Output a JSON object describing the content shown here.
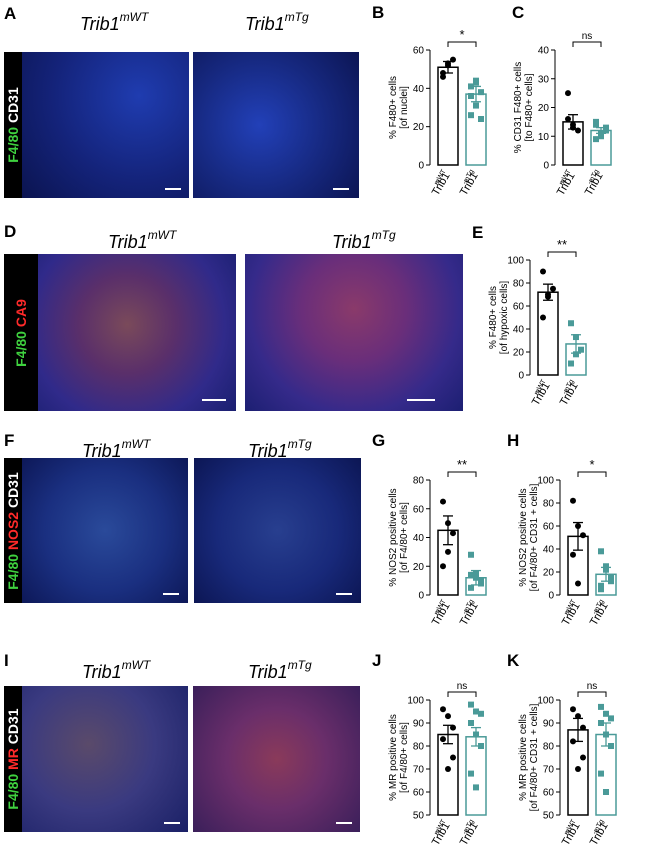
{
  "panels": {
    "A": {
      "letter": "A",
      "stain": [
        "F4/80",
        "CD31"
      ],
      "wt_label": "Trib1",
      "wt_sup": "mWT",
      "tg_label": "Trib1",
      "tg_sup": "mTg"
    },
    "D": {
      "letter": "D",
      "stain": [
        "F4/80",
        "CA9"
      ],
      "wt_label": "Trib1",
      "wt_sup": "mWT",
      "tg_label": "Trib1",
      "tg_sup": "mTg"
    },
    "F": {
      "letter": "F",
      "stain": [
        "F4/80",
        "NOS2",
        "CD31"
      ],
      "wt_label": "Trib1",
      "wt_sup": "mWT",
      "tg_label": "Trib1",
      "tg_sup": "mTg"
    },
    "I": {
      "letter": "I",
      "stain": [
        "F4/80",
        "MR",
        "CD31"
      ],
      "wt_label": "Trib1",
      "wt_sup": "mWT",
      "tg_label": "Trib1",
      "tg_sup": "mTg"
    }
  },
  "colors": {
    "wt": "#000000",
    "tg": "#4a9a98",
    "green": "#3fd23f",
    "red": "#ff2a2a"
  },
  "chart_data": [
    {
      "id": "B",
      "letter": "B",
      "type": "scatter",
      "ylabel": [
        "% F480+ cells",
        "[of nuclei]"
      ],
      "ylim": [
        0,
        60
      ],
      "yticks": [
        0,
        20,
        40,
        60
      ],
      "sig": "*",
      "groups": [
        {
          "name": "Trib1",
          "sup": "mWT",
          "mean": 51,
          "sem": 3,
          "values": [
            48,
            53,
            55,
            46,
            52
          ]
        },
        {
          "name": "Trib1",
          "sup": "mTg",
          "mean": 37,
          "sem": 4,
          "values": [
            26,
            31,
            38,
            41,
            44,
            24,
            36,
            43
          ]
        }
      ]
    },
    {
      "id": "C",
      "letter": "C",
      "type": "scatter",
      "ylabel": [
        "% CD31 F480+ cells",
        "[to F480+ cells]"
      ],
      "ylim": [
        0,
        40
      ],
      "yticks": [
        0,
        10,
        20,
        30,
        40
      ],
      "sig": "ns",
      "groups": [
        {
          "name": "Trib1",
          "sup": "mWT",
          "mean": 15,
          "sem": 2.5,
          "values": [
            25,
            13,
            12,
            16,
            14
          ]
        },
        {
          "name": "Trib1",
          "sup": "mTg",
          "mean": 12,
          "sem": 1,
          "values": [
            9,
            11,
            13,
            14,
            10,
            12,
            15
          ]
        }
      ]
    },
    {
      "id": "E",
      "letter": "E",
      "type": "scatter",
      "ylabel": [
        "% F480+ cells",
        "[of hypoxic cells]"
      ],
      "ylim": [
        0,
        100
      ],
      "yticks": [
        0,
        20,
        40,
        60,
        80,
        100
      ],
      "sig": "**",
      "groups": [
        {
          "name": "Trib1",
          "sup": "mWT",
          "mean": 72,
          "sem": 7,
          "values": [
            90,
            70,
            75,
            50,
            68
          ]
        },
        {
          "name": "Trib1",
          "sup": "mTg",
          "mean": 27,
          "sem": 8,
          "values": [
            45,
            33,
            22,
            10,
            18
          ]
        }
      ]
    },
    {
      "id": "G",
      "letter": "G",
      "type": "scatter",
      "ylabel": [
        "% NOS2 positive cells",
        "[of F4/80+ cells]"
      ],
      "ylim": [
        0,
        80
      ],
      "yticks": [
        0,
        20,
        40,
        60,
        80
      ],
      "sig": "**",
      "groups": [
        {
          "name": "Trib1",
          "sup": "mWT",
          "mean": 45,
          "sem": 10,
          "values": [
            65,
            50,
            43,
            20,
            30
          ]
        },
        {
          "name": "Trib1",
          "sup": "mTg",
          "mean": 12,
          "sem": 5,
          "values": [
            28,
            15,
            10,
            5,
            12,
            8,
            14
          ]
        }
      ]
    },
    {
      "id": "H",
      "letter": "H",
      "type": "scatter",
      "ylabel": [
        "% NOS2 positive cells",
        "[of F4/80+ CD31 + cells]"
      ],
      "ylim": [
        0,
        100
      ],
      "yticks": [
        0,
        20,
        40,
        60,
        80,
        100
      ],
      "sig": "*",
      "groups": [
        {
          "name": "Trib1",
          "sup": "mWT",
          "mean": 51,
          "sem": 12,
          "values": [
            82,
            60,
            52,
            35,
            10
          ]
        },
        {
          "name": "Trib1",
          "sup": "mTg",
          "mean": 18,
          "sem": 6,
          "values": [
            38,
            22,
            15,
            8,
            25,
            12,
            5
          ]
        }
      ]
    },
    {
      "id": "J",
      "letter": "J",
      "type": "scatter",
      "ylabel": [
        "% MR positive cells",
        "[of F4/80+ cells]"
      ],
      "ylim": [
        50,
        100
      ],
      "yticks": [
        50,
        60,
        70,
        80,
        90,
        100
      ],
      "sig": "ns",
      "groups": [
        {
          "name": "Trib1",
          "sup": "mWT",
          "mean": 85,
          "sem": 4,
          "values": [
            96,
            93,
            88,
            83,
            70,
            75
          ]
        },
        {
          "name": "Trib1",
          "sup": "mTg",
          "mean": 84,
          "sem": 4,
          "values": [
            98,
            95,
            94,
            90,
            85,
            80,
            68,
            62
          ]
        }
      ]
    },
    {
      "id": "K",
      "letter": "K",
      "type": "scatter",
      "ylabel": [
        "% MR positive cells",
        "[of F4/80+  CD31 + cells]"
      ],
      "ylim": [
        50,
        100
      ],
      "yticks": [
        50,
        60,
        70,
        80,
        90,
        100
      ],
      "sig": "ns",
      "groups": [
        {
          "name": "Trib1",
          "sup": "mWT",
          "mean": 87,
          "sem": 5,
          "values": [
            96,
            93,
            88,
            82,
            70,
            75
          ]
        },
        {
          "name": "Trib1",
          "sup": "mTg",
          "mean": 85,
          "sem": 5,
          "values": [
            97,
            94,
            92,
            90,
            85,
            80,
            68,
            60
          ]
        }
      ]
    }
  ]
}
